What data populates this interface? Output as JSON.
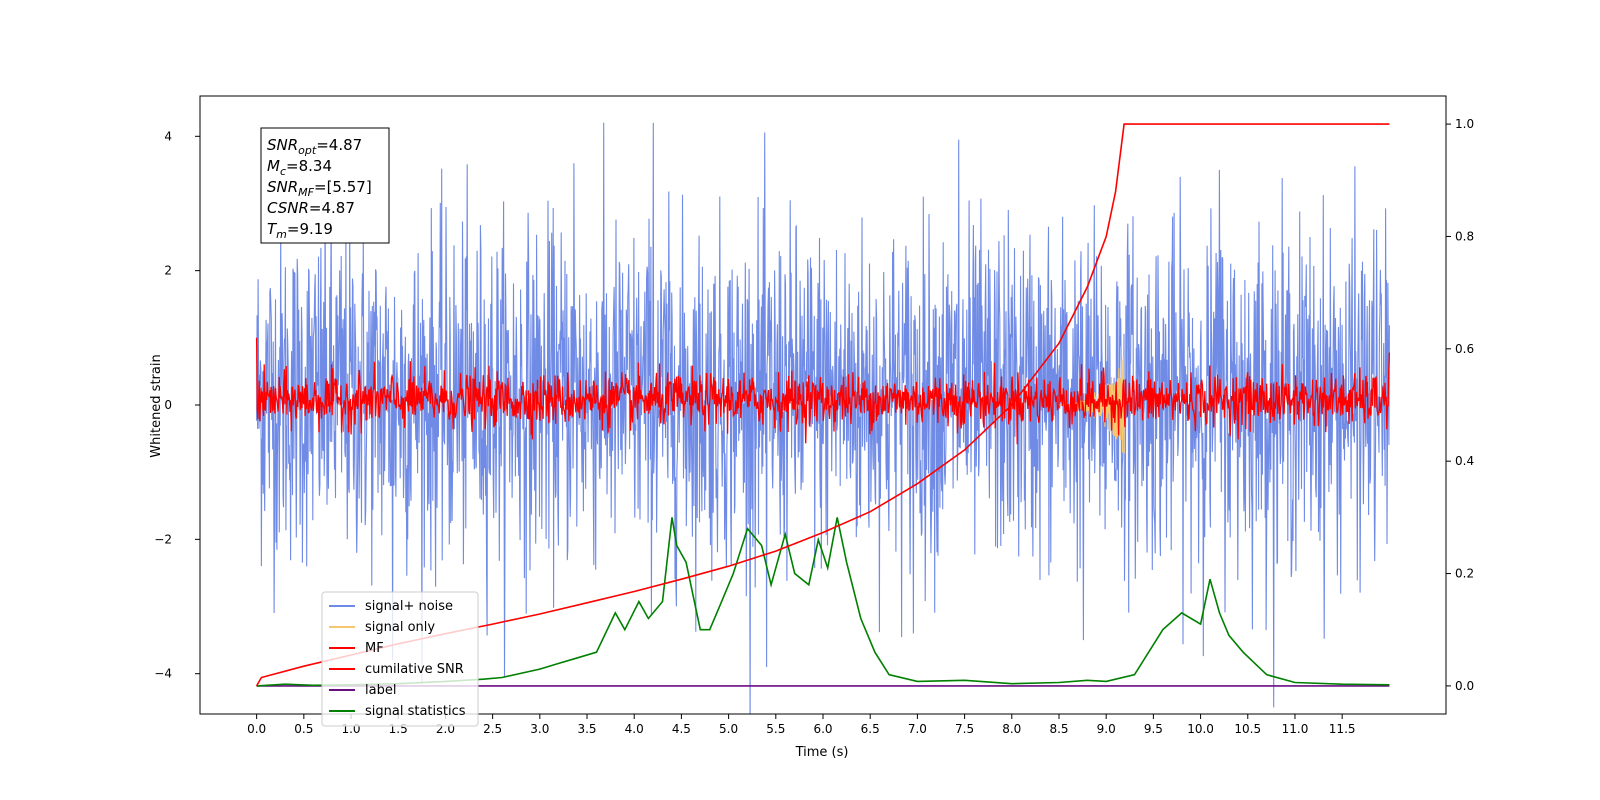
{
  "chart_data": {
    "type": "line",
    "xlabel": "Time (s)",
    "ylabel": "Whitened strain",
    "xlim": [
      -0.6,
      12.6
    ],
    "ylim": [
      -4.6,
      4.6
    ],
    "y2lim": [
      -0.05,
      1.05
    ],
    "x_ticks": [
      0.0,
      0.5,
      1.0,
      1.5,
      2.0,
      2.5,
      3.0,
      3.5,
      4.0,
      4.5,
      5.0,
      5.5,
      6.0,
      6.5,
      7.0,
      7.5,
      8.0,
      8.5,
      9.0,
      9.5,
      10.0,
      10.5,
      11.0,
      11.5
    ],
    "x_tick_labels": [
      "0.0",
      "0.5",
      "1.0",
      "1.5",
      "2.0",
      "2.5",
      "3.0",
      "3.5",
      "4.0",
      "4.5",
      "5.0",
      "5.5",
      "6.0",
      "6.5",
      "7.0",
      "7.5",
      "8.0",
      "8.5",
      "9.0",
      "9.5",
      "10.0",
      "10.5",
      "11.0",
      "11.5"
    ],
    "y_ticks": [
      -4,
      -2,
      0,
      2,
      4
    ],
    "y_tick_labels": [
      "−4",
      "−2",
      "0",
      "2",
      "4"
    ],
    "y2_ticks": [
      0.0,
      0.2,
      0.4,
      0.6,
      0.8,
      1.0
    ],
    "y2_tick_labels": [
      "0.0",
      "0.2",
      "0.4",
      "0.6",
      "0.8",
      "1.0"
    ],
    "grid": false,
    "legend_position": "bottom-left",
    "annotation": {
      "lines": [
        {
          "sym": "SNR",
          "sub": "opt",
          "val": "=4.87"
        },
        {
          "sym": "M",
          "sub": "c",
          "val": "=8.34"
        },
        {
          "sym": "SNR",
          "sub": "MF",
          "val": "=[5.57]"
        },
        {
          "sym": "CSNR",
          "sub": "",
          "val": "=4.87"
        },
        {
          "sym": "T",
          "sub": "m",
          "val": "=9.19"
        }
      ]
    },
    "noise_envelope": {
      "x_range": [
        0.0,
        12.0
      ],
      "typical_range": [
        -1.5,
        1.8
      ],
      "peaks": [
        4.2,
        3.95,
        3.6,
        3.5
      ],
      "troughs": [
        -3.9,
        -3.8,
        -3.5,
        -3.4
      ]
    },
    "mf_band": {
      "x_range": [
        0.0,
        12.0
      ],
      "typical_range": [
        -0.25,
        0.4
      ],
      "endpoints": [
        1.0,
        0.78
      ]
    },
    "signal_only": {
      "x_range": [
        8.5,
        9.19
      ],
      "peak": 0.75,
      "trough": -0.55
    },
    "series": [
      {
        "name": "signal+ noise",
        "axis": "left",
        "color": "#6f8be6",
        "note": "dense noise between -1.5 and 1.8 with spikes up to 4.2"
      },
      {
        "name": "signal only",
        "axis": "left",
        "color": "#f5c76e"
      },
      {
        "name": "MF",
        "axis": "left",
        "color": "#ff0000"
      },
      {
        "name": "cumilative SNR",
        "axis": "right",
        "color": "#ff0000",
        "x": [
          0.0,
          0.05,
          0.5,
          1.0,
          1.5,
          2.0,
          2.5,
          3.0,
          3.5,
          4.0,
          4.5,
          5.0,
          5.5,
          6.0,
          6.5,
          7.0,
          7.5,
          8.0,
          8.5,
          8.8,
          9.0,
          9.1,
          9.19,
          12.0
        ],
        "values": [
          0.0,
          0.015,
          0.035,
          0.055,
          0.075,
          0.093,
          0.11,
          0.128,
          0.148,
          0.168,
          0.19,
          0.213,
          0.24,
          0.273,
          0.31,
          0.36,
          0.42,
          0.5,
          0.61,
          0.71,
          0.8,
          0.88,
          1.0,
          1.0
        ]
      },
      {
        "name": "label",
        "axis": "right",
        "color": "#6a0d83",
        "x": [
          0.0,
          12.0
        ],
        "values": [
          0.0,
          0.0
        ]
      },
      {
        "name": "signal statistics",
        "axis": "right",
        "color": "#008000",
        "x": [
          0.0,
          0.3,
          0.6,
          1.0,
          1.5,
          2.0,
          2.4,
          2.6,
          3.0,
          3.2,
          3.4,
          3.6,
          3.8,
          3.9,
          4.05,
          4.15,
          4.3,
          4.4,
          4.45,
          4.55,
          4.7,
          4.8,
          4.9,
          5.05,
          5.2,
          5.35,
          5.45,
          5.6,
          5.7,
          5.85,
          5.95,
          6.05,
          6.15,
          6.25,
          6.4,
          6.55,
          6.7,
          7.0,
          7.5,
          8.0,
          8.5,
          8.8,
          9.0,
          9.3,
          9.6,
          9.8,
          10.0,
          10.1,
          10.2,
          10.3,
          10.45,
          10.7,
          11.0,
          11.5,
          12.0
        ],
        "values": [
          0.0,
          0.003,
          0.001,
          0.002,
          0.004,
          0.008,
          0.012,
          0.015,
          0.03,
          0.04,
          0.05,
          0.06,
          0.13,
          0.1,
          0.15,
          0.12,
          0.15,
          0.3,
          0.25,
          0.22,
          0.1,
          0.1,
          0.14,
          0.2,
          0.28,
          0.25,
          0.18,
          0.27,
          0.2,
          0.18,
          0.26,
          0.21,
          0.3,
          0.22,
          0.12,
          0.06,
          0.02,
          0.008,
          0.01,
          0.004,
          0.006,
          0.01,
          0.008,
          0.02,
          0.1,
          0.13,
          0.11,
          0.19,
          0.13,
          0.09,
          0.06,
          0.02,
          0.006,
          0.003,
          0.002
        ]
      }
    ]
  }
}
